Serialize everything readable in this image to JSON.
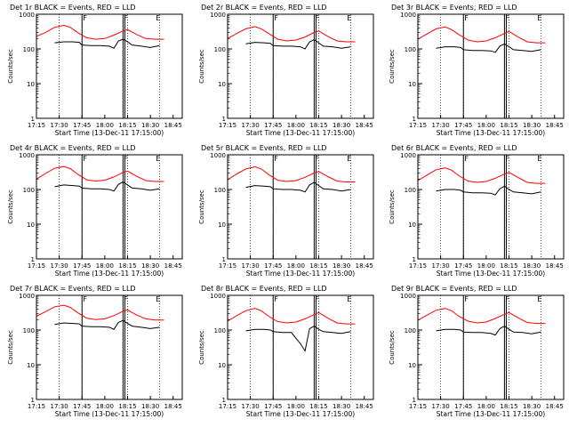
{
  "chart_data": [
    {
      "type": "line",
      "title": "Det 1r BLACK = Events, RED = LLD",
      "xlabel": "Start Time (13-Dec-11 17:15:00)",
      "ylabel": "Counts/sec",
      "ylim": [
        1,
        1000
      ],
      "yscale": "log",
      "x_ticks": [
        "17:15",
        "17:30",
        "17:45",
        "18:00",
        "18:15",
        "18:30",
        "18:45"
      ],
      "y_ticks": [
        "1",
        "10",
        "100",
        "1000"
      ],
      "markers": [
        "F",
        "F",
        "E"
      ],
      "series": [
        {
          "name": "Events",
          "color": "#000000",
          "x": [
            17.45,
            17.55,
            17.65,
            17.72,
            17.75,
            17.85,
            17.95,
            18.05,
            18.1,
            18.15,
            18.2,
            18.25,
            18.3,
            18.4,
            18.5,
            18.6
          ],
          "y": [
            150,
            160,
            160,
            155,
            130,
            125,
            125,
            120,
            105,
            170,
            190,
            160,
            130,
            120,
            110,
            125
          ]
        },
        {
          "name": "LLD",
          "color": "#ff0000",
          "x": [
            17.25,
            17.35,
            17.45,
            17.55,
            17.62,
            17.7,
            17.8,
            17.9,
            18.0,
            18.1,
            18.2,
            18.25,
            18.35,
            18.45,
            18.55,
            18.65
          ],
          "y": [
            230,
            300,
            420,
            480,
            420,
            300,
            210,
            190,
            200,
            250,
            330,
            360,
            260,
            200,
            190,
            190
          ]
        }
      ]
    },
    {
      "type": "line",
      "title": "Det 2r BLACK = Events, RED = LLD",
      "xlabel": "Start Time (13-Dec-11 17:15:00)",
      "ylabel": "Counts/sec",
      "ylim": [
        1,
        1000
      ],
      "yscale": "log",
      "x_ticks": [
        "17:15",
        "17:30",
        "17:45",
        "18:00",
        "18:15",
        "18:30",
        "18:45"
      ],
      "y_ticks": [
        "1",
        "10",
        "100",
        "1000"
      ],
      "markers": [
        "F",
        "F",
        "E"
      ],
      "series": [
        {
          "name": "Events",
          "color": "#000000",
          "x": [
            17.45,
            17.55,
            17.65,
            17.72,
            17.75,
            17.85,
            17.95,
            18.05,
            18.1,
            18.15,
            18.2,
            18.25,
            18.3,
            18.4,
            18.5,
            18.6
          ],
          "y": [
            140,
            155,
            150,
            145,
            125,
            120,
            120,
            115,
            100,
            160,
            185,
            150,
            120,
            115,
            105,
            115
          ]
        },
        {
          "name": "LLD",
          "color": "#ff0000",
          "x": [
            17.25,
            17.35,
            17.45,
            17.55,
            17.62,
            17.7,
            17.8,
            17.9,
            18.0,
            18.1,
            18.2,
            18.25,
            18.35,
            18.45,
            18.55,
            18.65
          ],
          "y": [
            200,
            280,
            380,
            440,
            380,
            280,
            190,
            170,
            180,
            220,
            300,
            330,
            230,
            170,
            160,
            160
          ]
        }
      ]
    },
    {
      "type": "line",
      "title": "Det 3r BLACK = Events, RED = LLD",
      "xlabel": "Start Time (13-Dec-11 17:15:00)",
      "ylabel": "Counts/sec",
      "ylim": [
        1,
        1000
      ],
      "yscale": "log",
      "x_ticks": [
        "17:15",
        "17:30",
        "17:45",
        "18:00",
        "18:15",
        "18:30",
        "18:45"
      ],
      "y_ticks": [
        "1",
        "10",
        "100",
        "1000"
      ],
      "markers": [
        "F",
        "F",
        "E"
      ],
      "series": [
        {
          "name": "Events",
          "color": "#000000",
          "x": [
            17.45,
            17.55,
            17.65,
            17.72,
            17.75,
            17.85,
            17.95,
            18.05,
            18.1,
            18.15,
            18.2,
            18.25,
            18.3,
            18.4,
            18.5,
            18.6
          ],
          "y": [
            105,
            115,
            115,
            110,
            95,
            90,
            90,
            88,
            80,
            120,
            140,
            115,
            95,
            90,
            85,
            95
          ]
        },
        {
          "name": "LLD",
          "color": "#ff0000",
          "x": [
            17.25,
            17.35,
            17.45,
            17.55,
            17.62,
            17.7,
            17.8,
            17.9,
            18.0,
            18.1,
            18.2,
            18.25,
            18.35,
            18.45,
            18.55,
            18.65
          ],
          "y": [
            190,
            270,
            380,
            430,
            360,
            260,
            180,
            160,
            170,
            210,
            280,
            320,
            220,
            160,
            150,
            150
          ]
        }
      ]
    },
    {
      "type": "line",
      "title": "Det 4r BLACK = Events, RED = LLD",
      "xlabel": "Start Time (13-Dec-11 17:15:00)",
      "ylabel": "Counts/sec",
      "ylim": [
        1,
        1000
      ],
      "yscale": "log",
      "x_ticks": [
        "17:15",
        "17:30",
        "17:45",
        "18:00",
        "18:15",
        "18:30",
        "18:45"
      ],
      "y_ticks": [
        "1",
        "10",
        "100",
        "1000"
      ],
      "markers": [
        "F",
        "F",
        "E"
      ],
      "series": [
        {
          "name": "Events",
          "color": "#000000",
          "x": [
            17.45,
            17.55,
            17.65,
            17.72,
            17.75,
            17.85,
            17.95,
            18.05,
            18.1,
            18.15,
            18.2,
            18.25,
            18.3,
            18.4,
            18.5,
            18.6
          ],
          "y": [
            120,
            135,
            130,
            125,
            110,
            105,
            105,
            100,
            90,
            140,
            165,
            135,
            110,
            105,
            95,
            105
          ]
        },
        {
          "name": "LLD",
          "color": "#ff0000",
          "x": [
            17.25,
            17.35,
            17.45,
            17.55,
            17.62,
            17.7,
            17.8,
            17.9,
            18.0,
            18.1,
            18.2,
            18.25,
            18.35,
            18.45,
            18.55,
            18.65
          ],
          "y": [
            200,
            290,
            410,
            460,
            400,
            280,
            190,
            175,
            185,
            230,
            310,
            340,
            240,
            180,
            170,
            170
          ]
        }
      ]
    },
    {
      "type": "line",
      "title": "Det 5r BLACK = Events, RED = LLD",
      "xlabel": "Start Time (13-Dec-11 17:15:00)",
      "ylabel": "Counts/sec",
      "ylim": [
        1,
        1000
      ],
      "yscale": "log",
      "x_ticks": [
        "17:15",
        "17:30",
        "17:45",
        "18:00",
        "18:15",
        "18:30",
        "18:45"
      ],
      "y_ticks": [
        "1",
        "10",
        "100",
        "1000"
      ],
      "markers": [
        "F",
        "F",
        "E"
      ],
      "series": [
        {
          "name": "Events",
          "color": "#000000",
          "x": [
            17.45,
            17.55,
            17.65,
            17.72,
            17.75,
            17.85,
            17.95,
            18.05,
            18.1,
            18.15,
            18.2,
            18.25,
            18.3,
            18.4,
            18.5,
            18.6
          ],
          "y": [
            115,
            130,
            125,
            120,
            105,
            100,
            100,
            95,
            85,
            135,
            160,
            130,
            105,
            100,
            90,
            100
          ]
        },
        {
          "name": "LLD",
          "color": "#ff0000",
          "x": [
            17.25,
            17.35,
            17.45,
            17.55,
            17.62,
            17.7,
            17.8,
            17.9,
            18.0,
            18.1,
            18.2,
            18.25,
            18.35,
            18.45,
            18.55,
            18.65
          ],
          "y": [
            190,
            280,
            390,
            450,
            390,
            270,
            185,
            170,
            180,
            225,
            300,
            330,
            235,
            175,
            165,
            165
          ]
        }
      ]
    },
    {
      "type": "line",
      "title": "Det 6r BLACK = Events, RED = LLD",
      "xlabel": "Start Time (13-Dec-11 17:15:00)",
      "ylabel": "Counts/sec",
      "ylim": [
        1,
        1000
      ],
      "yscale": "log",
      "x_ticks": [
        "17:15",
        "17:30",
        "17:45",
        "18:00",
        "18:15",
        "18:30",
        "18:45"
      ],
      "y_ticks": [
        "1",
        "10",
        "100",
        "1000"
      ],
      "markers": [
        "F",
        "F",
        "E"
      ],
      "series": [
        {
          "name": "Events",
          "color": "#000000",
          "x": [
            17.45,
            17.55,
            17.65,
            17.72,
            17.75,
            17.85,
            17.95,
            18.05,
            18.1,
            18.15,
            18.2,
            18.25,
            18.3,
            18.4,
            18.5,
            18.6
          ],
          "y": [
            90,
            100,
            100,
            95,
            85,
            80,
            80,
            78,
            70,
            105,
            125,
            100,
            85,
            80,
            75,
            85
          ]
        },
        {
          "name": "LLD",
          "color": "#ff0000",
          "x": [
            17.25,
            17.35,
            17.45,
            17.55,
            17.62,
            17.7,
            17.8,
            17.9,
            18.0,
            18.1,
            18.2,
            18.25,
            18.35,
            18.45,
            18.55,
            18.65
          ],
          "y": [
            180,
            260,
            370,
            420,
            360,
            250,
            175,
            160,
            170,
            210,
            280,
            310,
            220,
            160,
            150,
            150
          ]
        }
      ]
    },
    {
      "type": "line",
      "title": "Det 7r BLACK = Events, RED = LLD",
      "xlabel": "Start Time (13-Dec-11 17:15:00)",
      "ylabel": "Counts/sec",
      "ylim": [
        1,
        1000
      ],
      "yscale": "log",
      "x_ticks": [
        "17:15",
        "17:30",
        "17:45",
        "18:00",
        "18:15",
        "18:30",
        "18:45"
      ],
      "y_ticks": [
        "1",
        "10",
        "100",
        "1000"
      ],
      "markers": [
        "F",
        "F",
        "E"
      ],
      "series": [
        {
          "name": "Events",
          "color": "#000000",
          "x": [
            17.45,
            17.55,
            17.65,
            17.72,
            17.75,
            17.85,
            17.95,
            18.05,
            18.1,
            18.15,
            18.2,
            18.25,
            18.3,
            18.4,
            18.5,
            18.6
          ],
          "y": [
            145,
            160,
            155,
            150,
            130,
            125,
            125,
            120,
            105,
            165,
            190,
            155,
            130,
            120,
            110,
            120
          ]
        },
        {
          "name": "LLD",
          "color": "#ff0000",
          "x": [
            17.25,
            17.35,
            17.45,
            17.55,
            17.62,
            17.7,
            17.8,
            17.9,
            18.0,
            18.1,
            18.2,
            18.25,
            18.35,
            18.45,
            18.55,
            18.65
          ],
          "y": [
            250,
            340,
            470,
            520,
            450,
            320,
            220,
            200,
            210,
            260,
            350,
            380,
            270,
            210,
            195,
            195
          ]
        }
      ]
    },
    {
      "type": "line",
      "title": "Det 8r BLACK = Events, RED = LLD",
      "xlabel": "Start Time (13-Dec-11 17:15:00)",
      "ylabel": "Counts/sec",
      "ylim": [
        1,
        1000
      ],
      "yscale": "log",
      "x_ticks": [
        "17:15",
        "17:30",
        "17:45",
        "18:00",
        "18:15",
        "18:30",
        "18:45"
      ],
      "y_ticks": [
        "1",
        "10",
        "100",
        "1000"
      ],
      "markers": [
        "F",
        "F",
        "E"
      ],
      "series": [
        {
          "name": "Events",
          "color": "#000000",
          "x": [
            17.45,
            17.55,
            17.65,
            17.72,
            17.75,
            17.85,
            17.95,
            18.05,
            18.1,
            18.15,
            18.2,
            18.25,
            18.3,
            18.4,
            18.5,
            18.6
          ],
          "y": [
            95,
            105,
            105,
            100,
            90,
            85,
            85,
            40,
            25,
            110,
            130,
            105,
            90,
            85,
            80,
            90
          ]
        },
        {
          "name": "LLD",
          "color": "#ff0000",
          "x": [
            17.25,
            17.35,
            17.45,
            17.55,
            17.62,
            17.7,
            17.8,
            17.9,
            18.0,
            18.1,
            18.2,
            18.25,
            18.35,
            18.45,
            18.55,
            18.65
          ],
          "y": [
            180,
            260,
            360,
            420,
            360,
            250,
            175,
            160,
            170,
            210,
            280,
            320,
            220,
            160,
            150,
            150
          ]
        }
      ]
    },
    {
      "type": "line",
      "title": "Det 9r BLACK = Events, RED = LLD",
      "xlabel": "Start Time (13-Dec-11 17:15:00)",
      "ylabel": "Counts/sec",
      "ylim": [
        1,
        1000
      ],
      "yscale": "log",
      "x_ticks": [
        "17:15",
        "17:30",
        "17:45",
        "18:00",
        "18:15",
        "18:30",
        "18:45"
      ],
      "y_ticks": [
        "1",
        "10",
        "100",
        "1000"
      ],
      "markers": [
        "F",
        "F",
        "E"
      ],
      "series": [
        {
          "name": "Events",
          "color": "#000000",
          "x": [
            17.45,
            17.55,
            17.65,
            17.72,
            17.75,
            17.85,
            17.95,
            18.05,
            18.1,
            18.15,
            18.2,
            18.25,
            18.3,
            18.4,
            18.5,
            18.6
          ],
          "y": [
            95,
            105,
            105,
            100,
            88,
            85,
            85,
            80,
            72,
            110,
            130,
            105,
            88,
            85,
            78,
            88
          ]
        },
        {
          "name": "LLD",
          "color": "#ff0000",
          "x": [
            17.25,
            17.35,
            17.45,
            17.55,
            17.62,
            17.7,
            17.8,
            17.9,
            18.0,
            18.1,
            18.2,
            18.25,
            18.35,
            18.45,
            18.55,
            18.65
          ],
          "y": [
            190,
            270,
            370,
            420,
            360,
            250,
            180,
            160,
            170,
            215,
            285,
            320,
            225,
            165,
            155,
            155
          ]
        }
      ]
    }
  ]
}
